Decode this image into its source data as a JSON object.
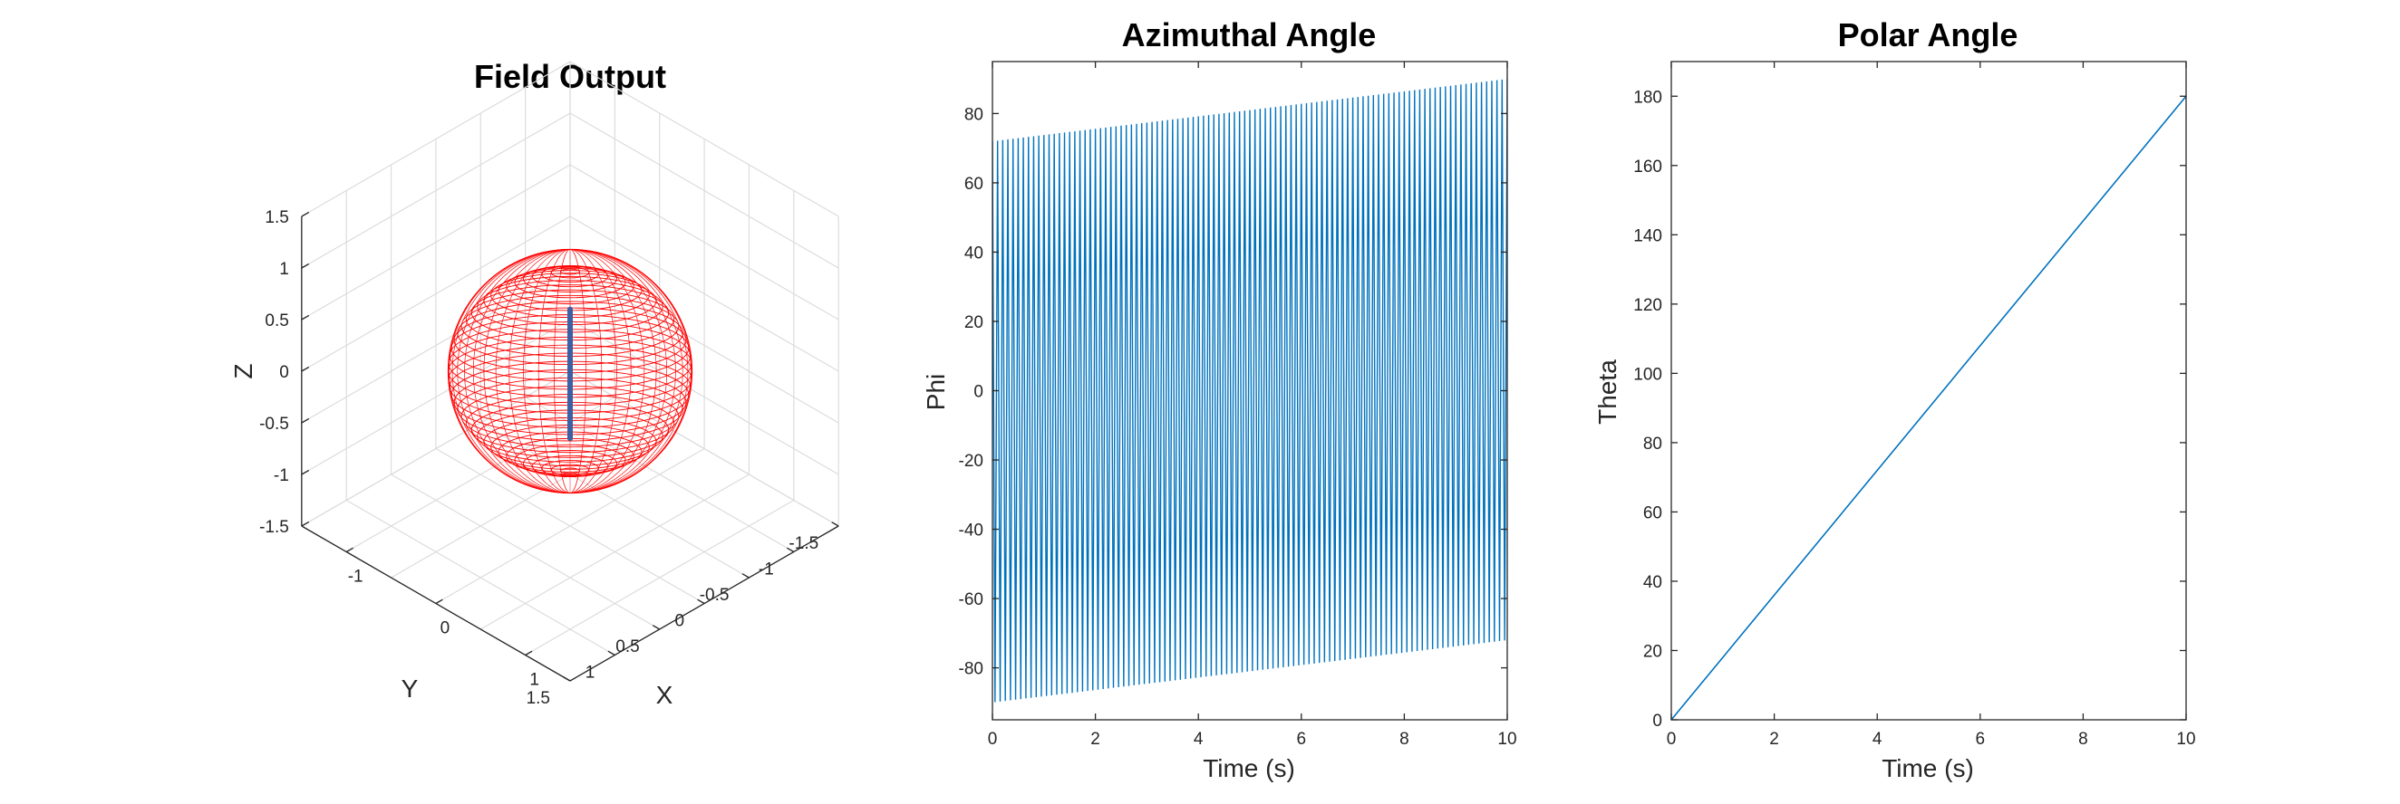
{
  "figure": {
    "background": "#ffffff"
  },
  "chart_data": [
    {
      "type": "scatter",
      "kind": "3d-surface",
      "title": "Field Output",
      "xlabel": "X",
      "ylabel": "Y",
      "zlabel": "Z",
      "xlim": [
        -1.5,
        1.5
      ],
      "ylim": [
        -1.5,
        1.5
      ],
      "zlim": [
        -1.5,
        1.5
      ],
      "x_ticks": [
        "-1",
        "0",
        "1"
      ],
      "y_ticks": [
        "-1.5",
        "-1",
        "-0.5",
        "0",
        "0.5",
        "1",
        "1.5"
      ],
      "z_ticks": [
        "-1.5",
        "-1",
        "-0.5",
        "0",
        "0.5",
        "1",
        "1.5"
      ],
      "grid": true,
      "view": "isometric",
      "surface": {
        "shape": "sphere",
        "radius": 1,
        "color": "#ff0000",
        "style": "mesh"
      },
      "vector": {
        "from": [
          0,
          0,
          0
        ],
        "to": [
          0,
          0,
          -1
        ],
        "color": "#3d5fa3"
      }
    },
    {
      "type": "line",
      "title": "Azimuthal Angle",
      "xlabel": "Time (s)",
      "ylabel": "Phi",
      "xlim": [
        0,
        10
      ],
      "ylim": [
        -95,
        95
      ],
      "x_ticks": [
        "0",
        "2",
        "4",
        "6",
        "8",
        "10"
      ],
      "y_ticks": [
        "-80",
        "-60",
        "-40",
        "-20",
        "0",
        "20",
        "40",
        "60",
        "80"
      ],
      "grid": false,
      "color": "#0072bd",
      "series": [
        {
          "description": "sawtooth oscillation between a lower and upper envelope",
          "cycles": 100,
          "upper_envelope": {
            "x": [
              0,
              10
            ],
            "y": [
              72,
              90
            ]
          },
          "lower_envelope": {
            "x": [
              0,
              10
            ],
            "y": [
              -90,
              -72
            ]
          }
        }
      ]
    },
    {
      "type": "line",
      "title": "Polar Angle",
      "xlabel": "Time (s)",
      "ylabel": "Theta",
      "xlim": [
        0,
        10
      ],
      "ylim": [
        0,
        190
      ],
      "x_ticks": [
        "0",
        "2",
        "4",
        "6",
        "8",
        "10"
      ],
      "y_ticks": [
        "0",
        "20",
        "40",
        "60",
        "80",
        "100",
        "120",
        "140",
        "160",
        "180"
      ],
      "grid": false,
      "color": "#0072bd",
      "series": [
        {
          "x": [
            0,
            10
          ],
          "y": [
            0,
            180
          ]
        }
      ]
    }
  ]
}
